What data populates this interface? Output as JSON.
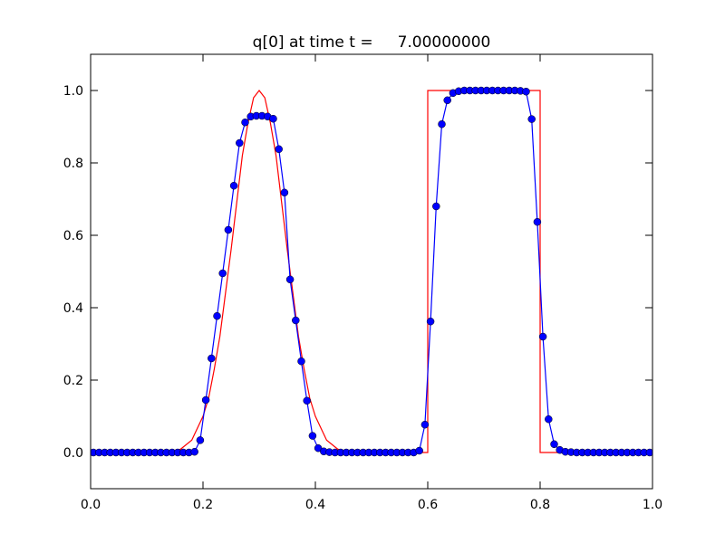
{
  "chart_data": {
    "type": "line",
    "title": "q[0] at time t =     7.00000000",
    "xlabel": "",
    "ylabel": "",
    "xlim": [
      0.0,
      1.0
    ],
    "ylim": [
      -0.1,
      1.1
    ],
    "xticks": [
      "0.0",
      "0.2",
      "0.4",
      "0.6",
      "0.8",
      "1.0"
    ],
    "yticks": [
      "0.0",
      "0.2",
      "0.4",
      "0.6",
      "0.8",
      "1.0"
    ],
    "xtick_values": [
      0.0,
      0.2,
      0.4,
      0.6,
      0.8,
      1.0
    ],
    "ytick_values": [
      0.0,
      0.2,
      0.4,
      0.6,
      0.8,
      1.0
    ],
    "grid": false,
    "legend": "none",
    "series": [
      {
        "style": "line",
        "color": "#ff0000",
        "x": [
          0.0,
          0.1,
          0.12,
          0.14,
          0.16,
          0.18,
          0.2,
          0.21,
          0.22,
          0.23,
          0.24,
          0.25,
          0.26,
          0.27,
          0.28,
          0.29,
          0.3,
          0.31,
          0.32,
          0.33,
          0.34,
          0.35,
          0.36,
          0.37,
          0.38,
          0.39,
          0.4,
          0.42,
          0.44,
          0.46,
          0.48,
          0.5,
          0.6,
          0.6,
          0.8,
          0.8,
          1.0
        ],
        "y": [
          0.0,
          0.0,
          0.0,
          0.003,
          0.009,
          0.034,
          0.1,
          0.15,
          0.23,
          0.32,
          0.44,
          0.56,
          0.69,
          0.82,
          0.91,
          0.98,
          1.0,
          0.98,
          0.91,
          0.82,
          0.69,
          0.56,
          0.44,
          0.32,
          0.23,
          0.15,
          0.1,
          0.034,
          0.009,
          0.003,
          0.0,
          0.0,
          0.0,
          1.0,
          1.0,
          0.0,
          0.0
        ]
      },
      {
        "style": "line-markers",
        "color": "#0000ff",
        "x": [
          0.005,
          0.015,
          0.025,
          0.035,
          0.045,
          0.055,
          0.065,
          0.075,
          0.085,
          0.095,
          0.105,
          0.115,
          0.125,
          0.135,
          0.145,
          0.155,
          0.165,
          0.175,
          0.185,
          0.195,
          0.205,
          0.215,
          0.225,
          0.235,
          0.245,
          0.255,
          0.265,
          0.275,
          0.285,
          0.295,
          0.305,
          0.315,
          0.325,
          0.335,
          0.345,
          0.355,
          0.365,
          0.375,
          0.385,
          0.395,
          0.405,
          0.415,
          0.425,
          0.435,
          0.445,
          0.455,
          0.465,
          0.475,
          0.485,
          0.495,
          0.505,
          0.515,
          0.525,
          0.535,
          0.545,
          0.555,
          0.565,
          0.575,
          0.585,
          0.595,
          0.605,
          0.615,
          0.625,
          0.635,
          0.645,
          0.655,
          0.665,
          0.675,
          0.685,
          0.695,
          0.705,
          0.715,
          0.725,
          0.735,
          0.745,
          0.755,
          0.765,
          0.775,
          0.785,
          0.795,
          0.805,
          0.815,
          0.825,
          0.835,
          0.845,
          0.855,
          0.865,
          0.875,
          0.885,
          0.895,
          0.905,
          0.915,
          0.925,
          0.935,
          0.945,
          0.955,
          0.965,
          0.975,
          0.985,
          0.995
        ],
        "y": [
          0.0,
          0.0,
          0.0,
          0.0,
          0.0,
          0.0,
          0.0,
          0.0,
          0.0,
          0.0,
          0.0,
          0.0,
          0.0,
          0.0,
          0.0,
          0.0,
          0.0,
          0.0,
          0.002,
          0.034,
          0.145,
          0.26,
          0.377,
          0.495,
          0.615,
          0.737,
          0.855,
          0.912,
          0.928,
          0.93,
          0.93,
          0.928,
          0.922,
          0.838,
          0.718,
          0.478,
          0.365,
          0.252,
          0.143,
          0.046,
          0.012,
          0.003,
          0.001,
          0.0,
          0.0,
          0.0,
          0.0,
          0.0,
          0.0,
          0.0,
          0.0,
          0.0,
          0.0,
          0.0,
          0.0,
          0.0,
          0.0,
          0.0,
          0.005,
          0.077,
          0.362,
          0.68,
          0.907,
          0.973,
          0.993,
          0.998,
          1.0,
          1.0,
          1.0,
          1.0,
          1.0,
          1.0,
          1.0,
          1.0,
          1.0,
          1.0,
          0.999,
          0.997,
          0.921,
          0.637,
          0.32,
          0.092,
          0.023,
          0.007,
          0.002,
          0.001,
          0.0,
          0.0,
          0.0,
          0.0,
          0.0,
          0.0,
          0.0,
          0.0,
          0.0,
          0.0,
          0.0,
          0.0,
          0.0,
          0.0
        ]
      }
    ]
  }
}
